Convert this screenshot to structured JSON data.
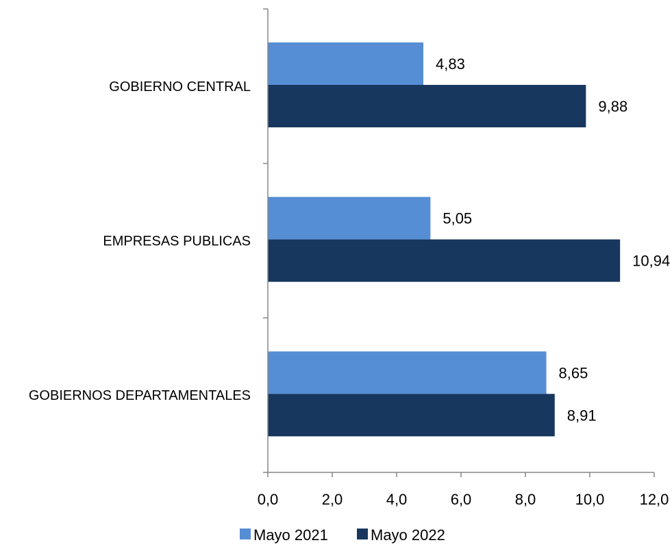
{
  "chart_data": {
    "type": "bar",
    "orientation": "horizontal",
    "categories": [
      "GOBIERNO CENTRAL",
      "EMPRESAS PUBLICAS",
      "GOBIERNOS DEPARTAMENTALES"
    ],
    "series": [
      {
        "name": "Mayo 2021",
        "color": "#558ED5",
        "values": [
          4.83,
          5.05,
          8.65
        ],
        "labels": [
          "4,83",
          "5,05",
          "8,65"
        ]
      },
      {
        "name": "Mayo 2022",
        "color": "#17375E",
        "values": [
          9.88,
          10.94,
          8.91
        ],
        "labels": [
          "9,88",
          "10,94",
          "8,91"
        ]
      }
    ],
    "xlim": [
      0,
      12
    ],
    "xticks": [
      0,
      2,
      4,
      6,
      8,
      10,
      12
    ],
    "xtick_labels": [
      "0,0",
      "2,0",
      "4,0",
      "6,0",
      "8,0",
      "10,0",
      "12,0"
    ],
    "grid": false,
    "legend_position": "bottom",
    "title": "",
    "xlabel": "",
    "ylabel": ""
  }
}
